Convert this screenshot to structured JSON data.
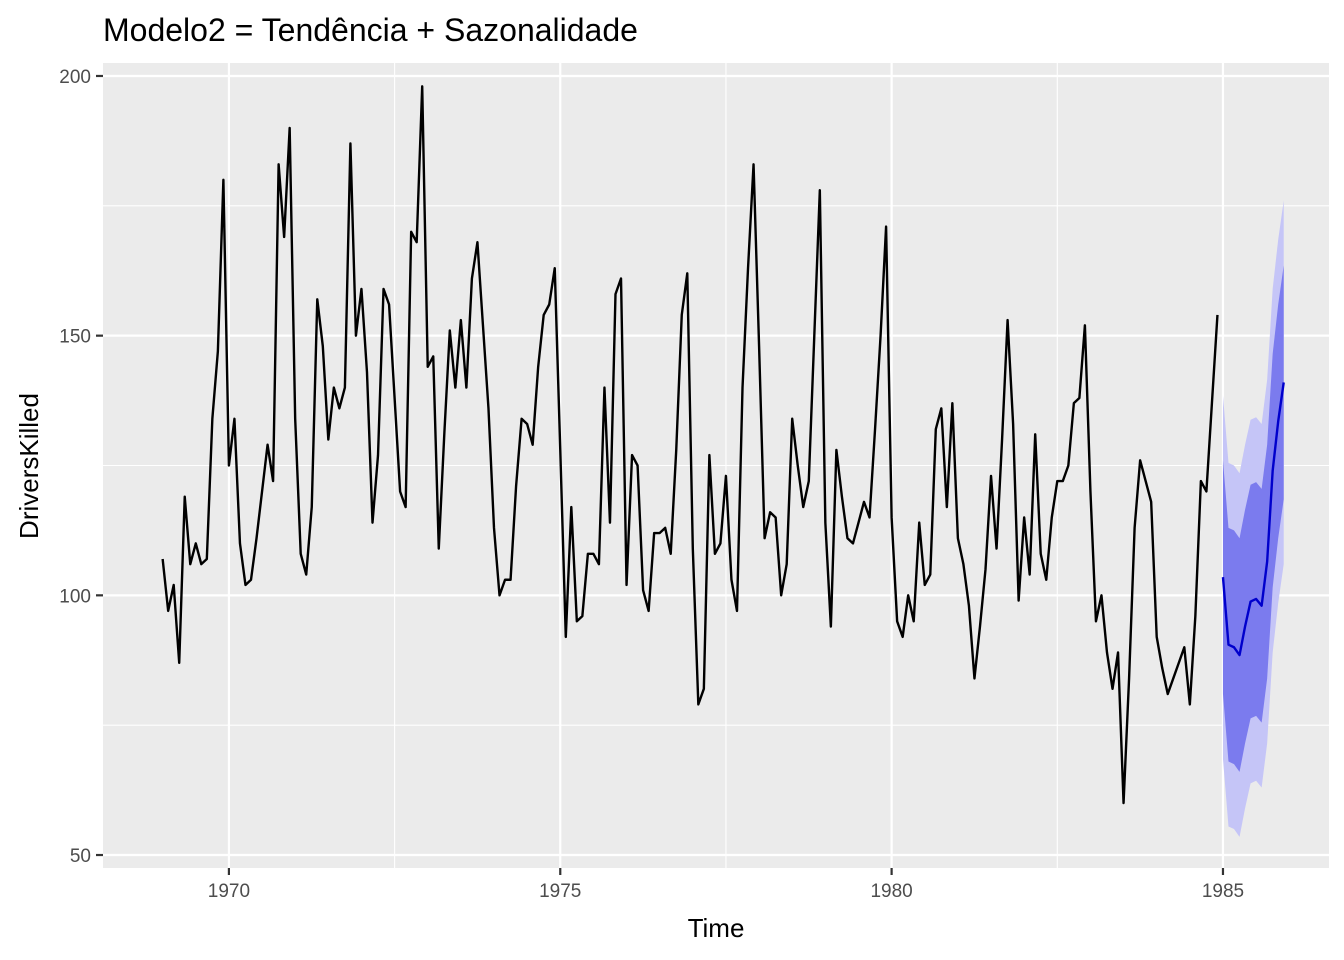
{
  "chart_data": {
    "type": "line",
    "title": "Modelo2 = Tendência + Sazonalidade",
    "xlabel": "Time",
    "ylabel": "DriversKilled",
    "xlim": [
      1968.1,
      1986.6
    ],
    "ylim": [
      47.5,
      202.5
    ],
    "x_ticks": [
      1970,
      1975,
      1980,
      1985
    ],
    "y_ticks": [
      50,
      100,
      150,
      200
    ],
    "x_tick_labels": [
      "1970",
      "1975",
      "1980",
      "1985"
    ],
    "y_tick_labels": [
      "50",
      "100",
      "150",
      "200"
    ],
    "grid": true,
    "legend": "none",
    "background": "#ebebeb",
    "series": [
      {
        "role": "observed",
        "color": "#000000",
        "start": 1969,
        "frequency": 12,
        "values": [
          107,
          97,
          102,
          87,
          119,
          106,
          110,
          106,
          107,
          134,
          147,
          180,
          125,
          134,
          110,
          102,
          103,
          111,
          120,
          129,
          122,
          183,
          169,
          190,
          134,
          108,
          104,
          117,
          157,
          148,
          130,
          140,
          136,
          140,
          187,
          150,
          159,
          143,
          114,
          127,
          159,
          156,
          138,
          120,
          117,
          170,
          168,
          198,
          144,
          146,
          109,
          131,
          151,
          140,
          153,
          140,
          161,
          168,
          152,
          136,
          113,
          100,
          103,
          103,
          121,
          134,
          133,
          129,
          144,
          154,
          156,
          163,
          128,
          92,
          117,
          95,
          96,
          108,
          108,
          106,
          140,
          114,
          158,
          161,
          102,
          127,
          125,
          101,
          97,
          112,
          112,
          113,
          108,
          128,
          154,
          162,
          109,
          79,
          82,
          127,
          108,
          110,
          123,
          103,
          97,
          140,
          163,
          183,
          148,
          111,
          116,
          115,
          100,
          106,
          134,
          125,
          117,
          122,
          150,
          178,
          114,
          94,
          128,
          119,
          111,
          110,
          114,
          118,
          115,
          132,
          150,
          171,
          115,
          95,
          92,
          100,
          95,
          114,
          102,
          104,
          132,
          136,
          117,
          137,
          111,
          106,
          98,
          84,
          94,
          105,
          123,
          109,
          130,
          153,
          133,
          99,
          115,
          104,
          131,
          108,
          103,
          115,
          122,
          122,
          125,
          137,
          138,
          152,
          120,
          95,
          100,
          89,
          82,
          89,
          60,
          84,
          113,
          126,
          122,
          118,
          92,
          86,
          81,
          84,
          87,
          90,
          79,
          96,
          122,
          120,
          137,
          154
        ]
      },
      {
        "role": "forecast",
        "name": "",
        "color": "#0000cc",
        "start": 1985,
        "frequency": 12,
        "values": [
          103.5,
          90.5,
          90.0,
          88.5,
          94.0,
          98.8,
          99.3,
          98.0,
          106.5,
          124.0,
          133.5,
          141.0
        ],
        "lower_80": [
          81.0,
          68.0,
          67.5,
          66.0,
          71.5,
          76.3,
          76.8,
          75.5,
          84.0,
          101.5,
          111.0,
          118.5
        ],
        "upper_80": [
          126.0,
          113.0,
          112.5,
          111.0,
          116.5,
          121.3,
          121.8,
          120.5,
          129.0,
          146.5,
          156.0,
          163.5
        ],
        "lower_95": [
          68.5,
          55.5,
          55.0,
          53.5,
          59.0,
          63.8,
          64.3,
          63.0,
          71.5,
          89.0,
          98.5,
          106.0
        ],
        "upper_95": [
          138.5,
          125.5,
          125.0,
          123.5,
          129.0,
          133.8,
          134.3,
          133.0,
          141.5,
          159.0,
          168.5,
          176.0
        ],
        "band_80_color": "#7b7bee",
        "band_95_color": "#c5c5f7"
      }
    ]
  }
}
